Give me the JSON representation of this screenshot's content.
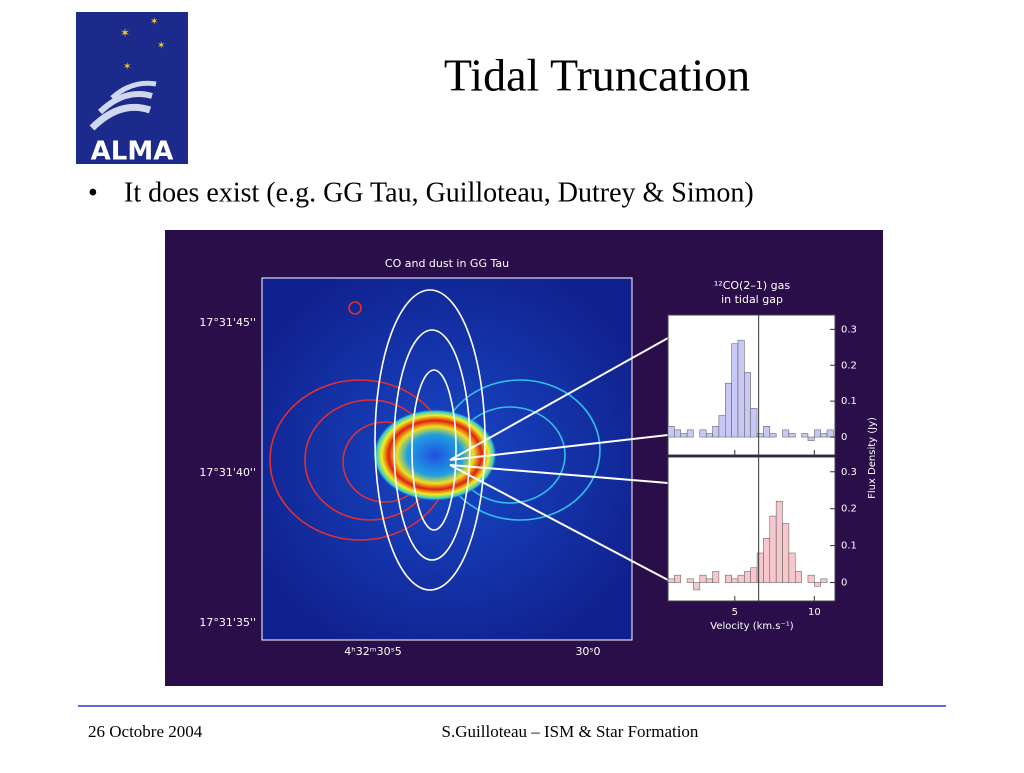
{
  "header": {
    "title": "Tidal Truncation",
    "logo": "ALMA"
  },
  "bullets": [
    "It does exist (e.g. GG Tau, Guilloteau, Dutrey & Simon)"
  ],
  "figure": {
    "title": "CO and dust in GG Tau",
    "dec_labels": [
      "17°31'45''",
      "17°31'40''",
      "17°31'35''"
    ],
    "ra_labels": [
      "4ʰ32ᵐ30ˢ5",
      "30ˢ0"
    ],
    "spectrum": {
      "title": [
        "¹²CO(2–1) gas",
        "in tidal gap"
      ],
      "ylabel": "Flux Density (Jy)",
      "xlabel": "Velocity (km.s⁻¹)",
      "xlim": [
        0.8,
        11.3
      ],
      "ylim": [
        -0.05,
        0.34
      ],
      "xticks": [
        5,
        10
      ],
      "yticks": [
        0,
        0.1,
        0.2,
        0.3
      ],
      "vline": 6.5,
      "bins": [
        0.8,
        1.2,
        1.6,
        2.0,
        2.4,
        2.8,
        3.2,
        3.6,
        4.0,
        4.4,
        4.8,
        5.2,
        5.6,
        6.0,
        6.4,
        6.8,
        7.2,
        7.6,
        8.0,
        8.4,
        8.8,
        9.2,
        9.6,
        10.0,
        10.4,
        10.8,
        11.2
      ],
      "panels": [
        {
          "color": "#c8c8f4",
          "values": [
            0.03,
            0.02,
            0.01,
            0.02,
            0.0,
            0.02,
            0.01,
            0.03,
            0.06,
            0.15,
            0.26,
            0.27,
            0.18,
            0.08,
            0.01,
            0.03,
            0.01,
            0.0,
            0.02,
            0.01,
            0.0,
            0.01,
            -0.01,
            0.02,
            0.01,
            0.02
          ]
        },
        {
          "color": "#f6c8cc",
          "values": [
            0.01,
            0.02,
            0.0,
            0.01,
            -0.02,
            0.02,
            0.01,
            0.03,
            0.0,
            0.02,
            0.01,
            0.02,
            0.03,
            0.04,
            0.08,
            0.12,
            0.18,
            0.22,
            0.16,
            0.08,
            0.03,
            0.0,
            0.02,
            -0.01,
            0.01,
            0.0
          ]
        }
      ]
    }
  },
  "footer": {
    "date": "26 Octobre 2004",
    "center": "S.Guilloteau – ISM & Star Formation"
  }
}
